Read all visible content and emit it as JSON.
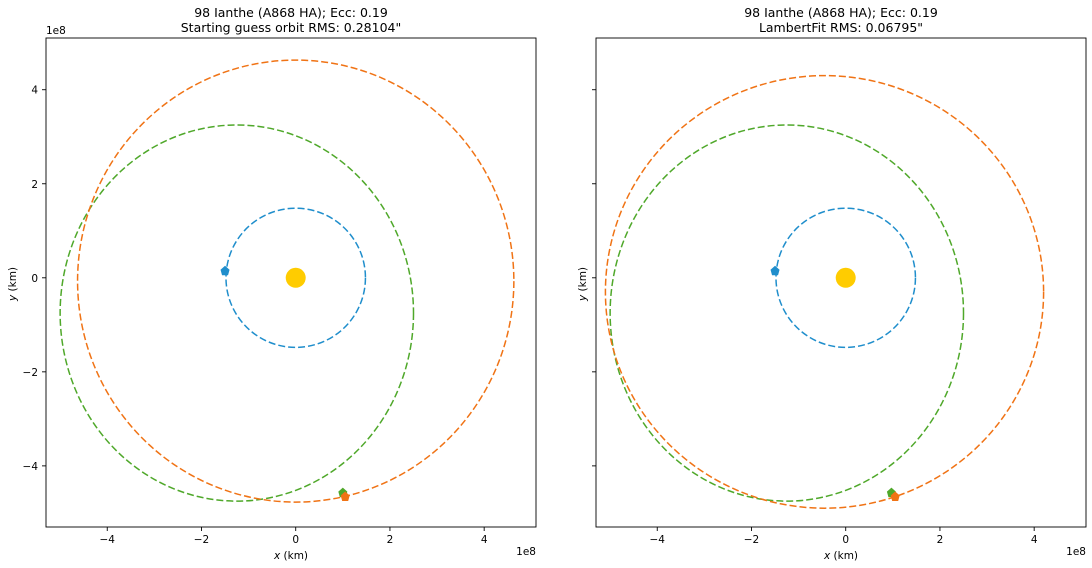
{
  "chart_data": [
    {
      "type": "line",
      "title": "98 Ianthe (A868 HA); Ecc: 0.19",
      "subtitle": "Starting guess orbit RMS: 0.28104\"",
      "xlabel": "x (km)",
      "ylabel": "y (km)",
      "x_scale_label": "1e8",
      "y_scale_label": "1e8",
      "xlim": [
        -5.3,
        5.1
      ],
      "ylim": [
        -5.3,
        5.1
      ],
      "xticks": [
        -4,
        -2,
        0,
        2,
        4
      ],
      "xticklabels": [
        "−4",
        "−2",
        "0",
        "2",
        "4"
      ],
      "yticks": [
        -4,
        -2,
        0,
        2,
        4
      ],
      "yticklabels": [
        "−4",
        "−2",
        "0",
        "2",
        "4"
      ],
      "grid": false,
      "units_multiplier": 100000000,
      "colors": {
        "earth": "#1f8ecc",
        "asteroid_true": "#4fa82a",
        "asteroid_fit": "#f07315",
        "sun": "#ffcc00"
      },
      "sun": {
        "x": 0.0,
        "y": 0.0
      },
      "series": [
        {
          "id": "earth",
          "kind": "ellipse",
          "cx": 0.0,
          "cy": 0.0,
          "rx": 1.48,
          "ry": 1.48,
          "marker": {
            "x": -1.5,
            "y": 0.15
          }
        },
        {
          "id": "asteroid_true",
          "kind": "ellipse",
          "cx": -1.25,
          "cy": -0.75,
          "rx": 3.75,
          "ry": 4.0,
          "marker": {
            "x": 1.0,
            "y": -4.57
          }
        },
        {
          "id": "asteroid_fit",
          "kind": "ellipse",
          "cx": 0.0,
          "cy": -0.07,
          "rx": 4.63,
          "ry": 4.7,
          "marker": {
            "x": 1.05,
            "y": -4.65
          }
        }
      ]
    },
    {
      "type": "line",
      "title": "98 Ianthe (A868 HA); Ecc: 0.19",
      "subtitle": "LambertFit RMS: 0.06795\"",
      "xlabel": "x (km)",
      "ylabel": "y (km)",
      "x_scale_label": "1e8",
      "y_scale_label": "",
      "xlim": [
        -5.3,
        5.1
      ],
      "ylim": [
        -5.3,
        5.1
      ],
      "xticks": [
        -4,
        -2,
        0,
        2,
        4
      ],
      "xticklabels": [
        "−4",
        "−2",
        "0",
        "2",
        "4"
      ],
      "yticks": [
        -4,
        -2,
        0,
        2,
        4
      ],
      "yticklabels": [],
      "grid": false,
      "units_multiplier": 100000000,
      "colors": {
        "earth": "#1f8ecc",
        "asteroid_true": "#4fa82a",
        "asteroid_fit": "#f07315",
        "sun": "#ffcc00"
      },
      "sun": {
        "x": 0.0,
        "y": 0.0
      },
      "series": [
        {
          "id": "earth",
          "kind": "ellipse",
          "cx": 0.0,
          "cy": 0.0,
          "rx": 1.48,
          "ry": 1.48,
          "marker": {
            "x": -1.5,
            "y": 0.15
          }
        },
        {
          "id": "asteroid_true",
          "kind": "ellipse",
          "cx": -1.25,
          "cy": -0.75,
          "rx": 3.75,
          "ry": 4.0,
          "marker": {
            "x": 0.97,
            "y": -4.57
          }
        },
        {
          "id": "asteroid_fit",
          "kind": "ellipse",
          "cx": -0.45,
          "cy": -0.3,
          "rx": 4.65,
          "ry": 4.6,
          "marker": {
            "x": 1.05,
            "y": -4.65
          }
        }
      ]
    }
  ]
}
